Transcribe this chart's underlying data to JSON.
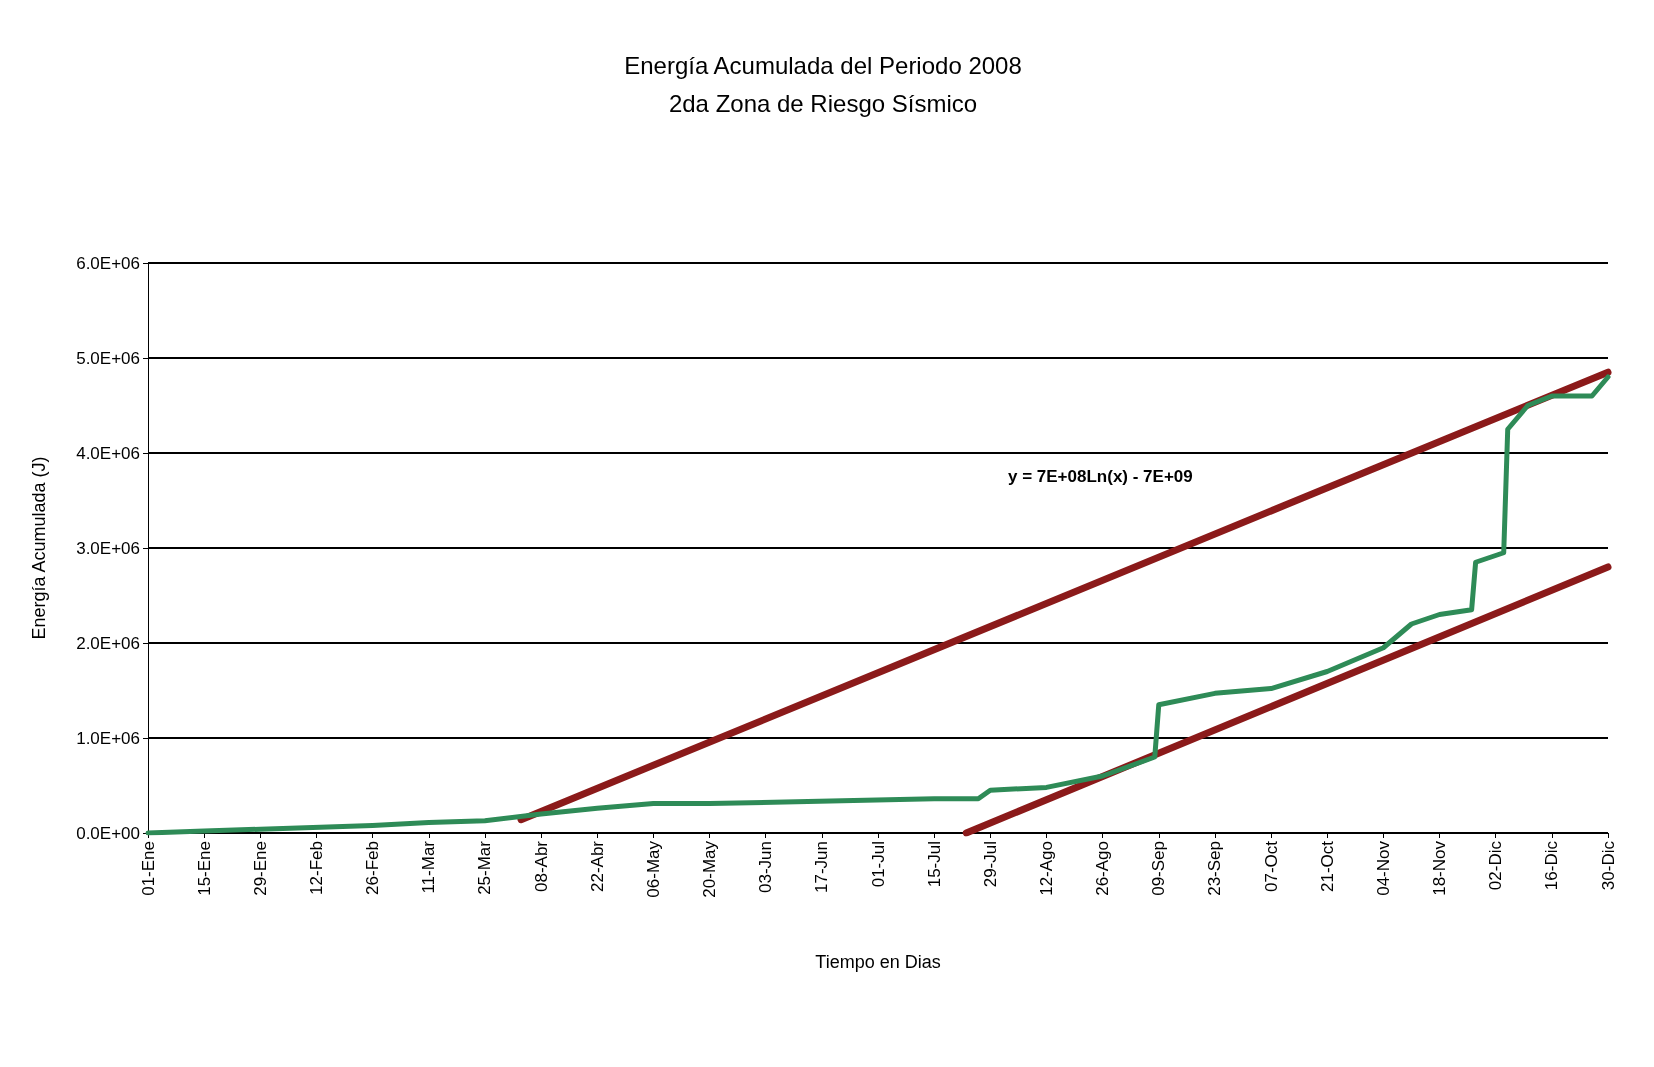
{
  "chart_data": {
    "type": "line",
    "title": "Energía Acumulada del Periodo 2008",
    "subtitle": "2da Zona de Riesgo Sísmico",
    "xlabel": "Tiempo en Dias",
    "ylabel": "Energía Acumulada (J)",
    "xlim": [
      "2008-01-01",
      "2008-12-30"
    ],
    "xticks": [
      {
        "value": "2008-01-01",
        "label": "01-Ene"
      },
      {
        "value": "2008-01-15",
        "label": "15-Ene"
      },
      {
        "value": "2008-01-29",
        "label": "29-Ene"
      },
      {
        "value": "2008-02-12",
        "label": "12-Feb"
      },
      {
        "value": "2008-02-26",
        "label": "26-Feb"
      },
      {
        "value": "2008-03-11",
        "label": "11-Mar"
      },
      {
        "value": "2008-03-25",
        "label": "25-Mar"
      },
      {
        "value": "2008-04-08",
        "label": "08-Abr"
      },
      {
        "value": "2008-04-22",
        "label": "22-Abr"
      },
      {
        "value": "2008-05-06",
        "label": "06-May"
      },
      {
        "value": "2008-05-20",
        "label": "20-May"
      },
      {
        "value": "2008-06-03",
        "label": "03-Jun"
      },
      {
        "value": "2008-06-17",
        "label": "17-Jun"
      },
      {
        "value": "2008-07-01",
        "label": "01-Jul"
      },
      {
        "value": "2008-07-15",
        "label": "15-Jul"
      },
      {
        "value": "2008-07-29",
        "label": "29-Jul"
      },
      {
        "value": "2008-08-12",
        "label": "12-Ago"
      },
      {
        "value": "2008-08-26",
        "label": "26-Ago"
      },
      {
        "value": "2008-09-09",
        "label": "09-Sep"
      },
      {
        "value": "2008-09-23",
        "label": "23-Sep"
      },
      {
        "value": "2008-10-07",
        "label": "07-Oct"
      },
      {
        "value": "2008-10-21",
        "label": "21-Oct"
      },
      {
        "value": "2008-11-04",
        "label": "04-Nov"
      },
      {
        "value": "2008-11-18",
        "label": "18-Nov"
      },
      {
        "value": "2008-12-02",
        "label": "02-Dic"
      },
      {
        "value": "2008-12-16",
        "label": "16-Dic"
      },
      {
        "value": "2008-12-30",
        "label": "30-Dic"
      }
    ],
    "ylim": [
      0,
      6000000
    ],
    "yticks": [
      {
        "value": 0,
        "label": "0.0E+00"
      },
      {
        "value": 1000000,
        "label": "1.0E+06"
      },
      {
        "value": 2000000,
        "label": "2.0E+06"
      },
      {
        "value": 3000000,
        "label": "3.0E+06"
      },
      {
        "value": 4000000,
        "label": "4.0E+06"
      },
      {
        "value": 5000000,
        "label": "5.0E+06"
      },
      {
        "value": 6000000,
        "label": "6.0E+06"
      }
    ],
    "grid": "y",
    "annotations": [
      "y = 7E+08Ln(x) - 7E+09"
    ],
    "series": [
      {
        "color": "#2e8b57",
        "x": [
          "2008-01-01",
          "2008-01-15",
          "2008-01-29",
          "2008-02-26",
          "2008-03-11",
          "2008-03-25",
          "2008-04-08",
          "2008-04-22",
          "2008-05-06",
          "2008-05-20",
          "2008-07-15",
          "2008-07-26",
          "2008-07-29",
          "2008-08-12",
          "2008-08-26",
          "2008-09-08",
          "2008-09-09",
          "2008-09-23",
          "2008-10-07",
          "2008-10-21",
          "2008-11-04",
          "2008-11-11",
          "2008-11-18",
          "2008-11-26",
          "2008-11-27",
          "2008-12-04",
          "2008-12-05",
          "2008-12-10",
          "2008-12-16",
          "2008-12-26",
          "2008-12-30"
        ],
        "values": [
          0,
          20000,
          40000,
          80000,
          110000,
          130000,
          200000,
          260000,
          310000,
          310000,
          360000,
          360000,
          450000,
          480000,
          600000,
          800000,
          1350000,
          1470000,
          1520000,
          1700000,
          1950000,
          2200000,
          2300000,
          2350000,
          2850000,
          2950000,
          4250000,
          4500000,
          4600000,
          4600000,
          4800000
        ]
      },
      {
        "color": "#8b1a1a",
        "type": "line",
        "x": [
          "2008-04-03",
          "2008-12-30"
        ],
        "values": [
          140000,
          4850000
        ]
      },
      {
        "color": "#8b1a1a",
        "type": "line",
        "x": [
          "2008-07-23",
          "2008-12-30"
        ],
        "values": [
          0,
          2800000
        ]
      }
    ]
  }
}
